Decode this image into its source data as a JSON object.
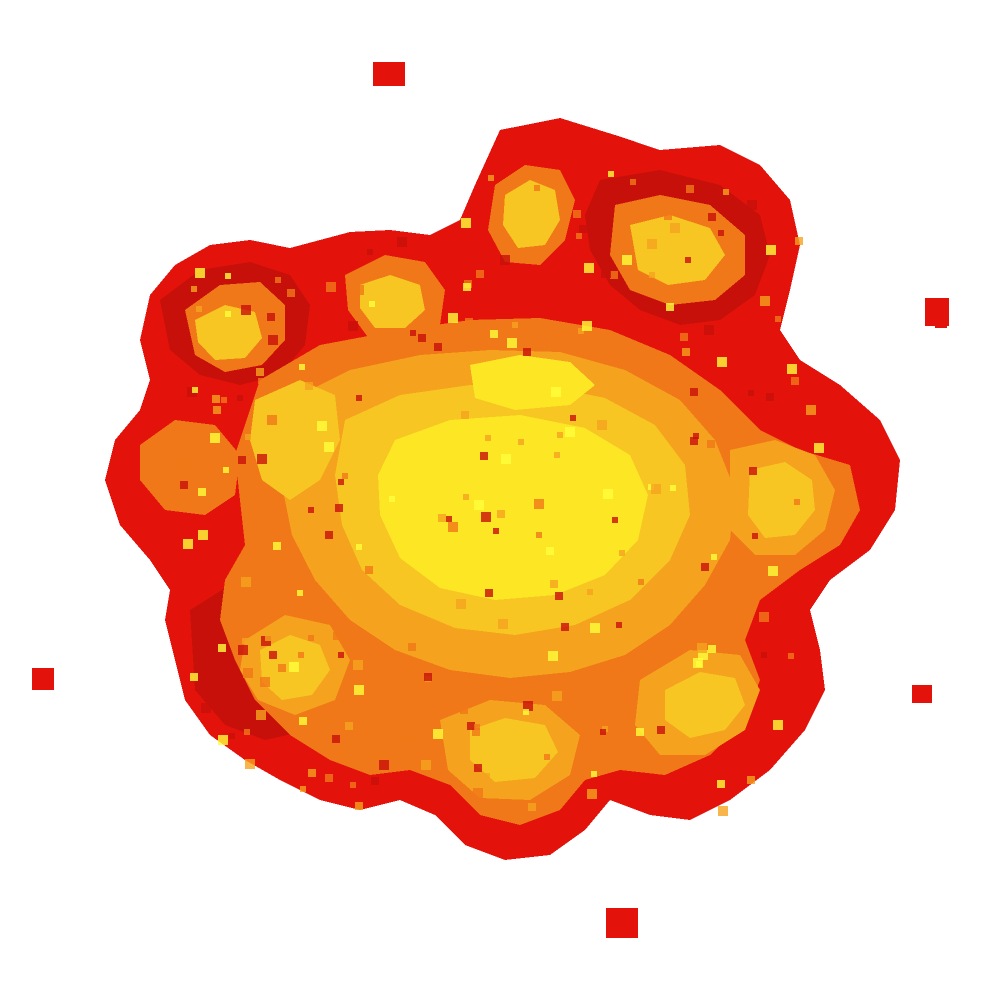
{
  "sprite": {
    "subject": "explosion-sprite",
    "style": "pixel-art",
    "colors": {
      "background": "#ffffff",
      "outer": "#e3120b",
      "dark_red": "#c8100a",
      "mid": "#f07818",
      "orange": "#f5a21e",
      "yellow_dark": "#f7c623",
      "yellow": "#fde725",
      "yellow_light": "#ffff3a"
    },
    "debris_count": 7
  }
}
